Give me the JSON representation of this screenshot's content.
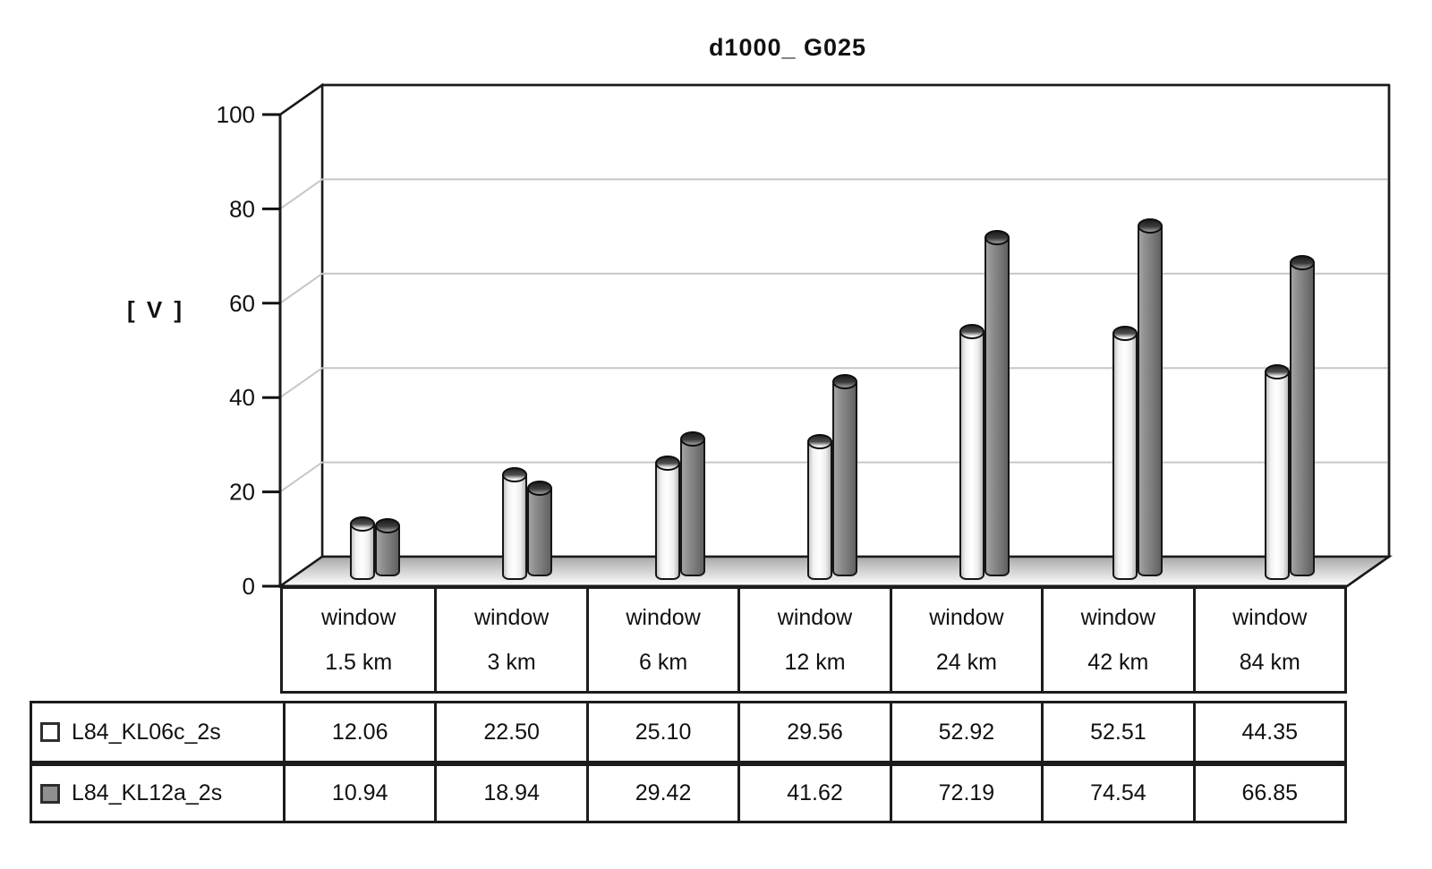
{
  "chart_data": {
    "type": "bar",
    "style": "3d-cylinder-columns",
    "title": "d1000_ G025",
    "ylabel": "[ V ]",
    "ylim": [
      0,
      100
    ],
    "yticks": [
      0,
      20,
      40,
      60,
      80,
      100
    ],
    "grid": true,
    "legend_position": "table-left",
    "categories": [
      {
        "line1": "window",
        "line2": "1.5 km"
      },
      {
        "line1": "window",
        "line2": "3 km"
      },
      {
        "line1": "window",
        "line2": "6 km"
      },
      {
        "line1": "window",
        "line2": "12 km"
      },
      {
        "line1": "window",
        "line2": "24 km"
      },
      {
        "line1": "window",
        "line2": "42 km"
      },
      {
        "line1": "window",
        "line2": "84 km"
      }
    ],
    "series": [
      {
        "name": "L84_KL06c_2s",
        "fill": "#ffffff",
        "values": [
          12.06,
          22.5,
          25.1,
          29.56,
          52.92,
          52.51,
          44.35
        ]
      },
      {
        "name": "L84_KL12a_2s",
        "fill": "#8f8f8f",
        "values": [
          10.94,
          18.94,
          29.42,
          41.62,
          72.19,
          74.54,
          66.85
        ]
      }
    ],
    "colors": {
      "outline": "#1a1a1a",
      "gridline": "#c6c6c6",
      "wall_fill": "#ffffff",
      "floor_top": "#a8a8a8",
      "text": "#111111"
    }
  }
}
